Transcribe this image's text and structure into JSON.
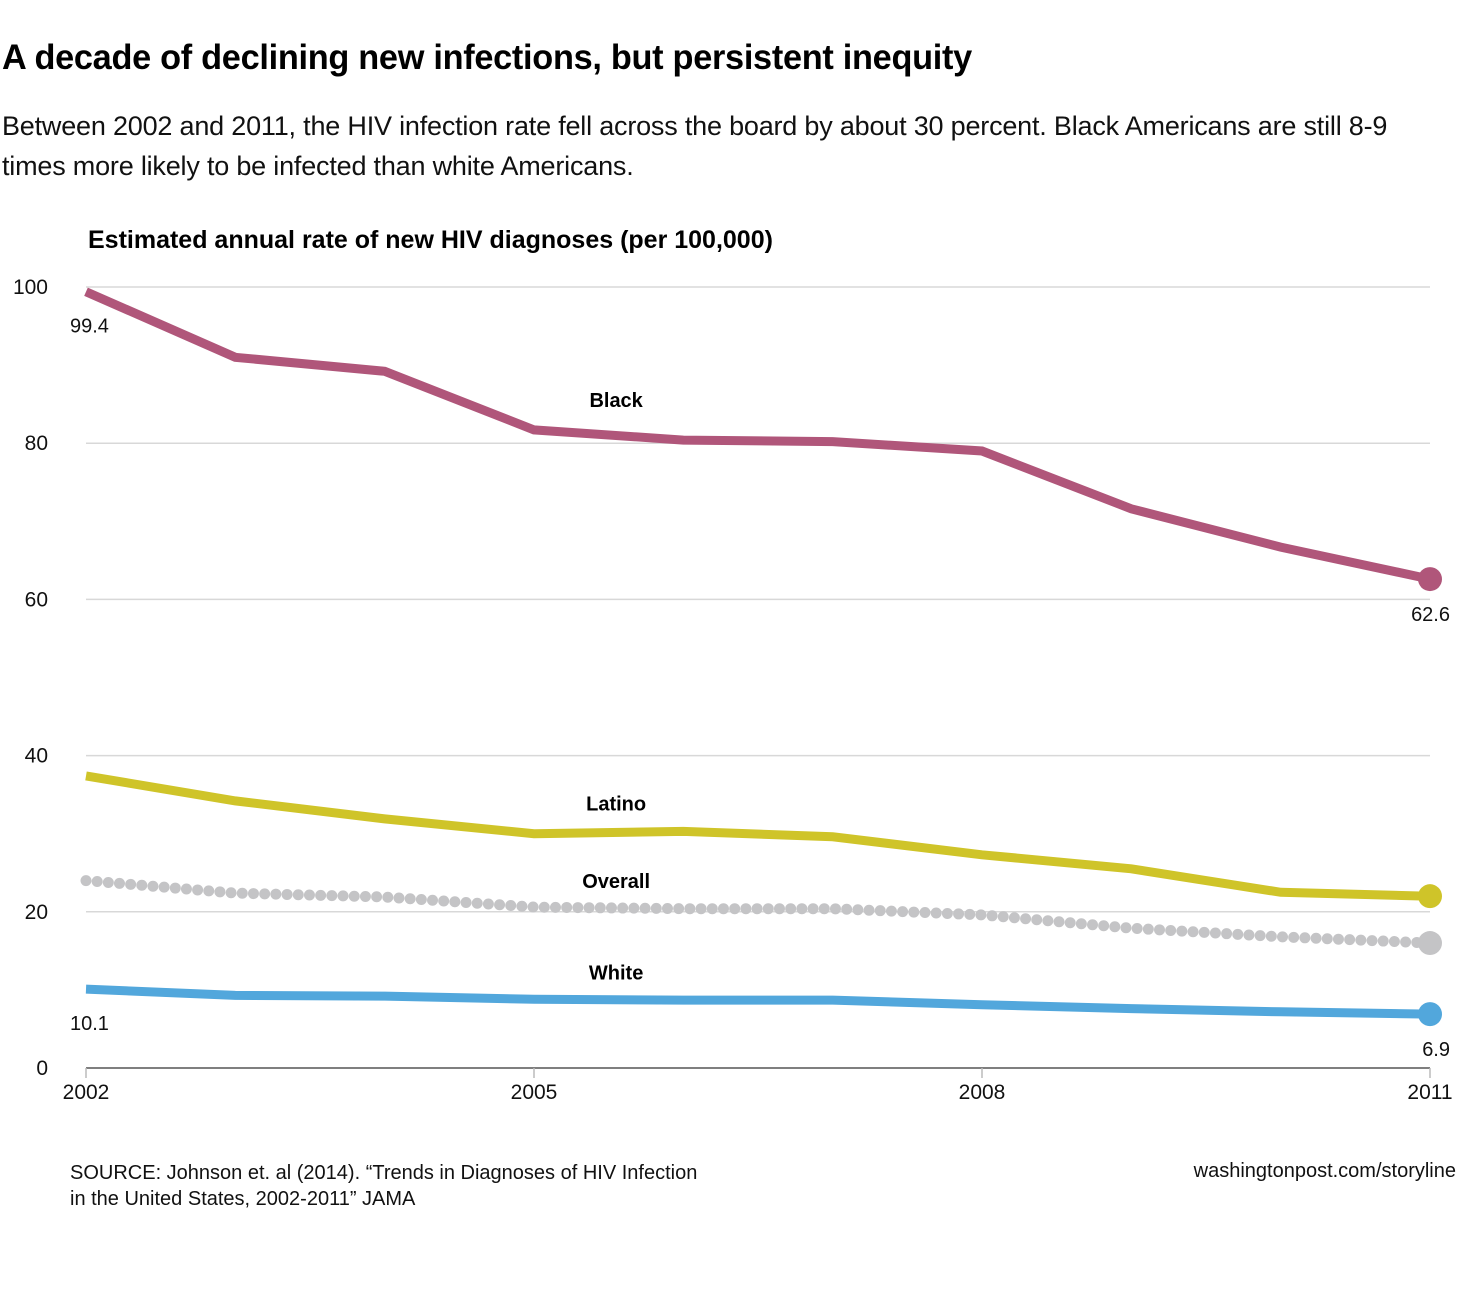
{
  "headline": "A decade of declining new infections, but persistent inequity",
  "dek": "Between 2002 and 2011, the HIV infection rate fell across the board by about 30 percent. Black Americans are still 8-9 times more likely to be infected than white Americans.",
  "source": {
    "line1": "SOURCE: Johnson et. al (2014). “Trends in Diagnoses of HIV Infection",
    "line2": "in the United States, 2002-2011” JAMA"
  },
  "credit": "washingtonpost.com/storyline",
  "chart_data": {
    "type": "line",
    "title": "Estimated annual rate of new HIV diagnoses (per 100,000)",
    "xlabel": "",
    "ylabel": "",
    "x": [
      2002,
      2003,
      2004,
      2005,
      2006,
      2007,
      2008,
      2009,
      2010,
      2011
    ],
    "xlim": [
      2002,
      2011
    ],
    "ylim": [
      0,
      100
    ],
    "xticks": [
      2002,
      2005,
      2008,
      2011
    ],
    "yticks": [
      0,
      20,
      40,
      60,
      80,
      100
    ],
    "grid": true,
    "legend": "inline-labels",
    "series": [
      {
        "name": "Black",
        "color": "#b0567a",
        "style": "solid",
        "values": [
          99.4,
          91.0,
          89.2,
          81.7,
          80.4,
          80.2,
          79.0,
          71.6,
          66.7,
          62.6
        ],
        "start_label": "99.4",
        "end_label": "62.6"
      },
      {
        "name": "Latino",
        "color": "#cfc429",
        "style": "solid",
        "values": [
          37.4,
          34.2,
          31.9,
          30.0,
          30.3,
          29.6,
          27.3,
          25.5,
          22.5,
          22.0
        ],
        "start_label": "",
        "end_label": ""
      },
      {
        "name": "Overall",
        "color": "#c4c4c6",
        "style": "dotted",
        "values": [
          24.0,
          22.4,
          21.9,
          20.6,
          20.4,
          20.4,
          19.6,
          17.9,
          16.8,
          16.0
        ],
        "start_label": "",
        "end_label": ""
      },
      {
        "name": "White",
        "color": "#52a7dc",
        "style": "solid",
        "values": [
          10.1,
          9.3,
          9.2,
          8.8,
          8.7,
          8.7,
          8.1,
          7.6,
          7.2,
          6.9
        ],
        "start_label": "10.1",
        "end_label": "6.9"
      }
    ]
  }
}
